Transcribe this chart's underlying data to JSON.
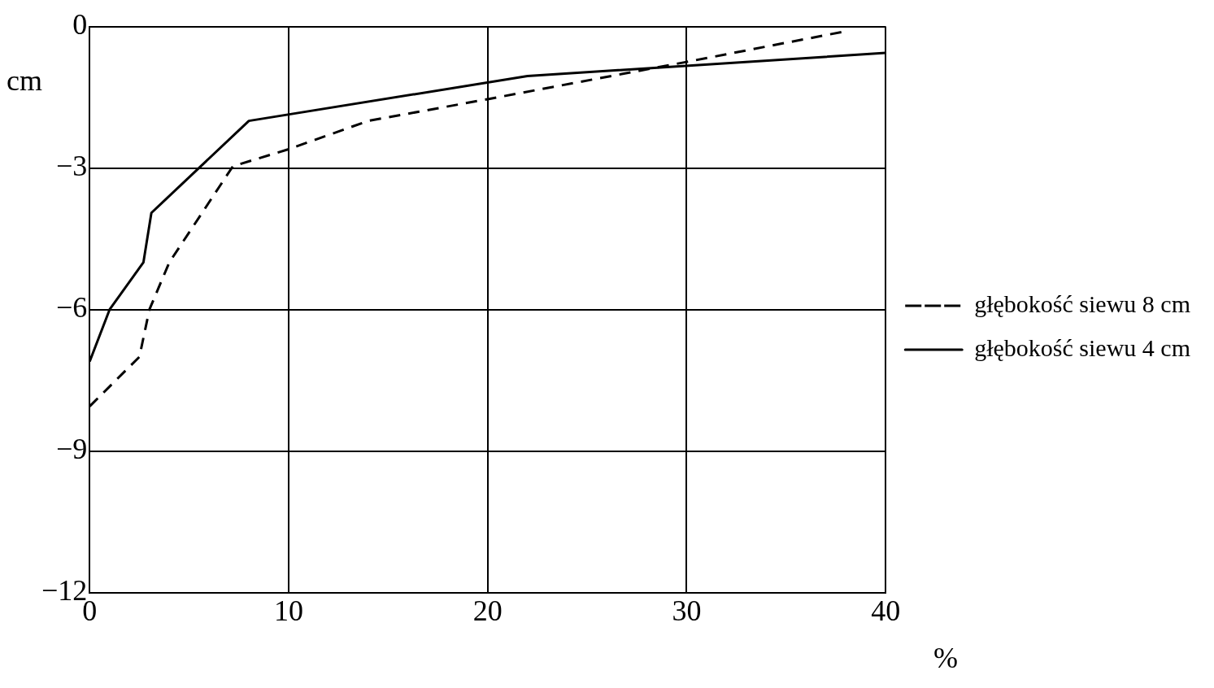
{
  "chart_data": {
    "type": "line",
    "xlabel": "%",
    "ylabel": "cm",
    "xlim": [
      0,
      40
    ],
    "xticks": [
      0,
      10,
      20,
      30,
      40
    ],
    "ylim": [
      -12,
      0
    ],
    "yticks": [
      0,
      -3,
      -6,
      -9,
      -12
    ],
    "grid": true,
    "legend": "right",
    "marker": "none",
    "series": [
      {
        "name": "głębokość siewu 8 cm",
        "color": "#000000",
        "line_style": "dashed",
        "x": [
          0,
          2.5,
          3,
          4,
          7.2,
          10,
          14,
          20,
          30,
          38
        ],
        "values": [
          -8.05,
          -7,
          -6,
          -5,
          -2.96,
          -2.6,
          -2,
          -1.54,
          -0.75,
          -0.1
        ]
      },
      {
        "name": "głębokość siewu 4 cm",
        "color": "#000000",
        "line_style": "solid",
        "x": [
          0,
          1,
          2.7,
          3.1,
          8,
          22,
          40
        ],
        "values": [
          -7.1,
          -6,
          -5,
          -3.95,
          -2,
          -1.05,
          -0.56
        ]
      }
    ]
  }
}
